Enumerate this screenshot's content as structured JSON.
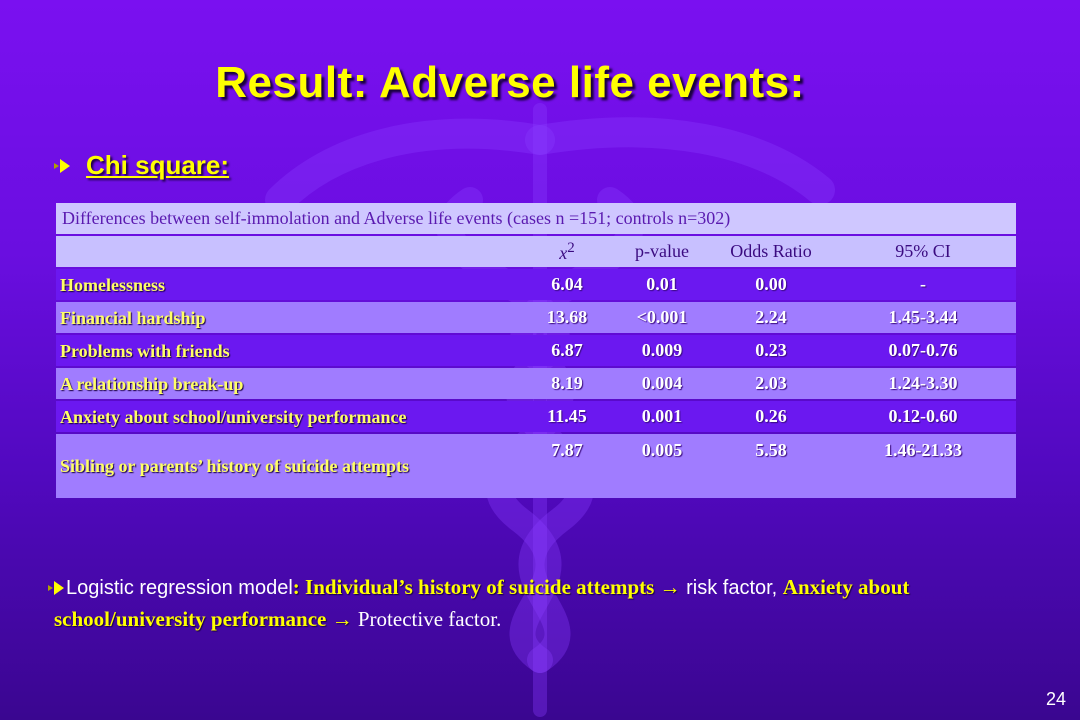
{
  "slide": {
    "title": "Result:  Adverse life events:",
    "subheading": "Chi square:",
    "page_number": "24"
  },
  "table": {
    "caption": "Differences  between self-immolation and Adverse life events (cases n =151; controls n=302)",
    "headers": {
      "label": "",
      "chi_base": "x",
      "chi_sup": "2",
      "pvalue": "p-value",
      "odds": "Odds Ratio",
      "ci": "95% CI"
    },
    "rows": [
      {
        "label": "Homelessness",
        "chi": "6.04",
        "p": "0.01",
        "or": "0.00",
        "ci": "-"
      },
      {
        "label": "Financial hardship",
        "chi": "13.68",
        "p": "<0.001",
        "or": "2.24",
        "ci": "1.45-3.44"
      },
      {
        "label": "Problems with friends",
        "chi": "6.87",
        "p": "0.009",
        "or": "0.23",
        "ci": "0.07-0.76"
      },
      {
        "label": "A relationship break-up",
        "chi": "8.19",
        "p": "0.004",
        "or": "2.03",
        "ci": "1.24-3.30"
      },
      {
        "label": "Anxiety about school/university performance",
        "chi": "11.45",
        "p": "0.001",
        "or": "0.26",
        "ci": "0.12-0.60"
      },
      {
        "label": "Sibling or parents’ history of suicide attempts",
        "chi": "7.87",
        "p": "0.005",
        "or": "5.58",
        "ci": "1.46-21.33"
      }
    ]
  },
  "logistic": {
    "prefix": "Logistic regression model",
    "colon": ": ",
    "factor1": "Individual’s history of suicide attempts →",
    "text1": " risk factor, ",
    "factor2": "Anxiety about school/university performance →",
    "text2": " Protective factor."
  },
  "icons": {
    "bullet": "arrow-bullet-icon",
    "background": "caduceus-watermark-icon"
  },
  "colors": {
    "title": "#ffff00",
    "background_top": "#7a10f0",
    "background_bottom": "#3a0690",
    "row_dark": "#6b18f0",
    "row_light": "#a07cff",
    "header_bg": "#c8c0ff"
  }
}
